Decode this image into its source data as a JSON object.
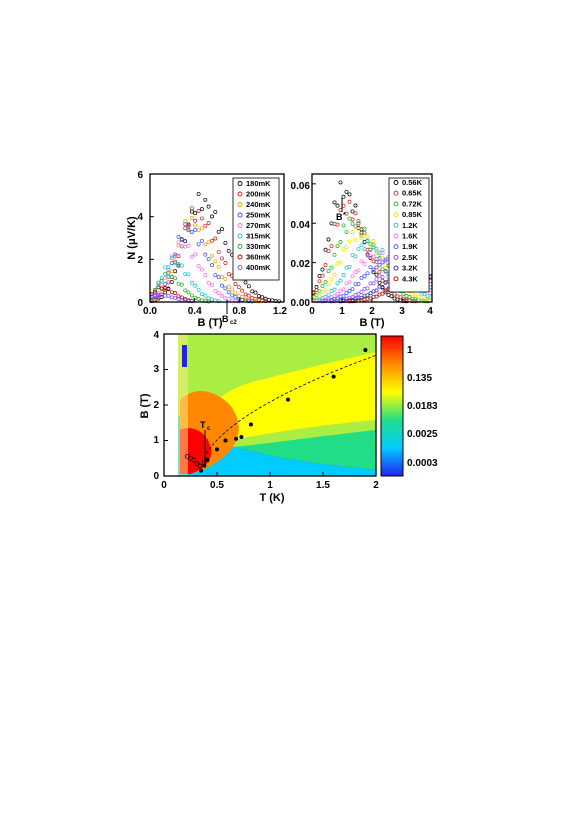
{
  "chart_data": [
    {
      "type": "scatter",
      "panel": "top-left",
      "ylabel": "N (μV/K)",
      "xlabel": "B (T)",
      "xlim": [
        0,
        1.2
      ],
      "ylim": [
        0,
        6
      ],
      "xticks": [
        "0.0",
        "0.4",
        "0.8",
        "1.2"
      ],
      "yticks": [
        "0",
        "2",
        "4",
        "6"
      ],
      "legend_position": "top-right",
      "annotations": [
        {
          "text": "B",
          "sub": "c2",
          "x": 0.62,
          "y": 0.2
        }
      ],
      "series": [
        {
          "name": "180mK",
          "color": "#000000",
          "peak_x": 0.45,
          "peak_y": 4.9,
          "width": 0.3
        },
        {
          "name": "200mK",
          "color": "#d62020",
          "peak_x": 0.4,
          "peak_y": 4.3,
          "width": 0.28
        },
        {
          "name": "240mK",
          "color": "#f0a000",
          "peak_x": 0.36,
          "peak_y": 3.9,
          "width": 0.26
        },
        {
          "name": "250mK",
          "color": "#3355ee",
          "peak_x": 0.33,
          "peak_y": 3.6,
          "width": 0.25
        },
        {
          "name": "270mK",
          "color": "#ff66ff",
          "peak_x": 0.28,
          "peak_y": 2.8,
          "width": 0.23
        },
        {
          "name": "315mK",
          "color": "#20c0c0",
          "peak_x": 0.2,
          "peak_y": 2.0,
          "width": 0.2
        },
        {
          "name": "330mK",
          "color": "#20b020",
          "peak_x": 0.15,
          "peak_y": 1.3,
          "width": 0.18
        },
        {
          "name": "360mK",
          "color": "#aa0000",
          "peak_x": 0.1,
          "peak_y": 0.7,
          "width": 0.16
        },
        {
          "name": "400mK",
          "color": "#8844ff",
          "peak_x": 0.08,
          "peak_y": 0.35,
          "width": 0.18
        }
      ]
    },
    {
      "type": "scatter",
      "panel": "top-right",
      "xlabel": "B (T)",
      "xlim": [
        0,
        4
      ],
      "ylim": [
        0,
        0.065
      ],
      "xticks": [
        "0",
        "1",
        "2",
        "3",
        "4"
      ],
      "yticks": [
        "0.00",
        "0.02",
        "0.04",
        "0.06"
      ],
      "legend_position": "top-right",
      "annotations": [
        {
          "text": "B",
          "sub": "*",
          "x": 1.0,
          "y": 0.035
        }
      ],
      "series": [
        {
          "name": "0.56K",
          "color": "#000000",
          "peak_x": 1.0,
          "peak_y": 0.059,
          "width": 0.9
        },
        {
          "name": "0.65K",
          "color": "#d62020",
          "peak_x": 1.1,
          "peak_y": 0.05,
          "width": 1.0
        },
        {
          "name": "0.72K",
          "color": "#20b020",
          "peak_x": 1.3,
          "peak_y": 0.042,
          "width": 1.1
        },
        {
          "name": "0.85K",
          "color": "#f0e000",
          "peak_x": 1.5,
          "peak_y": 0.036,
          "width": 1.2
        },
        {
          "name": "1.2K",
          "color": "#20c0c0",
          "peak_x": 1.8,
          "peak_y": 0.03,
          "width": 1.3
        },
        {
          "name": "1.6K",
          "color": "#ff66ff",
          "peak_x": 2.1,
          "peak_y": 0.025,
          "width": 1.4
        },
        {
          "name": "1.9K",
          "color": "#3355ee",
          "peak_x": 2.4,
          "peak_y": 0.021,
          "width": 1.5
        },
        {
          "name": "2.5K",
          "color": "#8844ff",
          "peak_x": 2.8,
          "peak_y": 0.017,
          "width": 1.6
        },
        {
          "name": "3.2K",
          "color": "#2020aa",
          "peak_x": 3.2,
          "peak_y": 0.015,
          "width": 1.7
        },
        {
          "name": "4.3K",
          "color": "#aa0000",
          "peak_x": 3.6,
          "peak_y": 0.013,
          "width": 1.8
        }
      ]
    },
    {
      "type": "heatmap",
      "panel": "bottom",
      "xlabel": "T (K)",
      "ylabel": "B (T)",
      "xlim": [
        0,
        2
      ],
      "ylim": [
        0,
        4
      ],
      "xticks": [
        "0",
        "0.5",
        "1",
        "1.5",
        "2"
      ],
      "yticks": [
        "0",
        "1",
        "2",
        "3",
        "4"
      ],
      "colorbar_labels": [
        "1",
        "0.135",
        "0.0183",
        "0.0025",
        "0.0003"
      ],
      "colorbar_scale": "log",
      "colors": [
        "#ff0000",
        "#ff8800",
        "#ffff00",
        "#22dd88",
        "#00ccff",
        "#2222ee"
      ],
      "annotations": [
        {
          "text": "T",
          "sub": "c",
          "x": 0.36,
          "y": 1.8
        }
      ],
      "points": [
        {
          "x": 0.35,
          "y": 0.15
        },
        {
          "x": 0.38,
          "y": 0.3
        },
        {
          "x": 0.41,
          "y": 0.45
        },
        {
          "x": 0.5,
          "y": 0.75
        },
        {
          "x": 0.58,
          "y": 1.0
        },
        {
          "x": 0.68,
          "y": 1.05
        },
        {
          "x": 0.73,
          "y": 1.1
        },
        {
          "x": 0.82,
          "y": 1.45
        },
        {
          "x": 1.17,
          "y": 2.15
        },
        {
          "x": 1.6,
          "y": 2.8
        },
        {
          "x": 1.9,
          "y": 3.55
        }
      ],
      "open_points": [
        {
          "x": 0.22,
          "y": 0.55
        },
        {
          "x": 0.25,
          "y": 0.5
        },
        {
          "x": 0.28,
          "y": 0.45
        },
        {
          "x": 0.31,
          "y": 0.35
        },
        {
          "x": 0.34,
          "y": 0.28
        }
      ]
    }
  ]
}
